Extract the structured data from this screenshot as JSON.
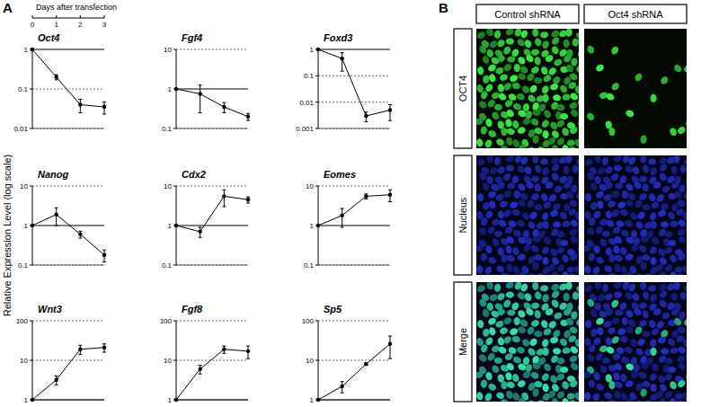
{
  "chart_data": [
    {
      "type": "line",
      "title": "Oct4",
      "x": [
        0,
        1,
        2,
        3
      ],
      "values": [
        1,
        0.2,
        0.04,
        0.035
      ],
      "errors": [
        0,
        0.03,
        0.015,
        0.012
      ],
      "xlim": [
        0,
        3
      ],
      "ylim": [
        0.01,
        1
      ],
      "yticks": [
        0.01,
        0.1,
        1
      ],
      "log": "y",
      "grid": true,
      "tick_labels": "y",
      "color": "#000000",
      "marker": "circle"
    },
    {
      "type": "line",
      "title": "Fgf4",
      "x": [
        0,
        1,
        2,
        3
      ],
      "values": [
        1,
        0.75,
        0.35,
        0.2
      ],
      "errors": [
        0,
        0.5,
        0.1,
        0.04
      ],
      "xlim": [
        0,
        3
      ],
      "ylim": [
        0.1,
        10
      ],
      "yticks": [
        0.1,
        1,
        10
      ],
      "log": "y",
      "grid": true,
      "tick_labels": "y",
      "color": "#000000",
      "marker": "circle"
    },
    {
      "type": "line",
      "title": "Foxd3",
      "x": [
        0,
        1,
        2,
        3
      ],
      "values": [
        1,
        0.45,
        0.003,
        0.005
      ],
      "errors": [
        0,
        0.3,
        0.0012,
        0.003
      ],
      "xlim": [
        0,
        3
      ],
      "ylim": [
        0.001,
        1
      ],
      "yticks": [
        0.001,
        0.01,
        0.1,
        1
      ],
      "log": "y",
      "grid": true,
      "tick_labels": "y",
      "color": "#000000",
      "marker": "circle"
    },
    {
      "type": "line",
      "title": "Nanog",
      "x": [
        0,
        1,
        2,
        3
      ],
      "values": [
        1,
        1.9,
        0.6,
        0.18
      ],
      "errors": [
        0,
        0.9,
        0.12,
        0.06
      ],
      "xlim": [
        0,
        3
      ],
      "ylim": [
        0.1,
        10
      ],
      "yticks": [
        0.1,
        1,
        10
      ],
      "log": "y",
      "grid": true,
      "tick_labels": "y",
      "color": "#000000",
      "marker": "circle"
    },
    {
      "type": "line",
      "title": "Cdx2",
      "x": [
        0,
        1,
        2,
        3
      ],
      "values": [
        1,
        0.7,
        5.5,
        4.5
      ],
      "errors": [
        0,
        0.2,
        2.5,
        0.8
      ],
      "xlim": [
        0,
        3
      ],
      "ylim": [
        0.1,
        10
      ],
      "yticks": [
        0.1,
        1,
        10
      ],
      "log": "y",
      "grid": true,
      "tick_labels": "y",
      "color": "#000000",
      "marker": "circle"
    },
    {
      "type": "line",
      "title": "Eomes",
      "x": [
        0,
        1,
        2,
        3
      ],
      "values": [
        1,
        1.8,
        5.5,
        6
      ],
      "errors": [
        0,
        0.9,
        0.8,
        2
      ],
      "xlim": [
        0,
        3
      ],
      "ylim": [
        0.1,
        10
      ],
      "yticks": [
        0.1,
        1,
        10
      ],
      "log": "y",
      "grid": true,
      "tick_labels": "y",
      "color": "#000000",
      "marker": "circle"
    },
    {
      "type": "line",
      "title": "Wnt3",
      "x": [
        0,
        1,
        2,
        3
      ],
      "values": [
        1,
        3.2,
        19,
        21
      ],
      "errors": [
        0,
        0.8,
        5,
        5
      ],
      "xlim": [
        0,
        3
      ],
      "ylim": [
        1,
        100
      ],
      "yticks": [
        1,
        10,
        100
      ],
      "log": "y",
      "grid": true,
      "tick_labels": "y",
      "color": "#000000",
      "marker": "circle"
    },
    {
      "type": "line",
      "title": "Fgf8",
      "x": [
        0,
        1,
        2,
        3
      ],
      "values": [
        1,
        6,
        19,
        17
      ],
      "errors": [
        0,
        1.5,
        4,
        6
      ],
      "xlim": [
        0,
        3
      ],
      "ylim": [
        1,
        100
      ],
      "yticks": [
        1,
        10,
        100
      ],
      "log": "y",
      "grid": true,
      "tick_labels": "y",
      "color": "#000000",
      "marker": "circle"
    },
    {
      "type": "line",
      "title": "Sp5",
      "x": [
        0,
        1,
        2,
        3
      ],
      "values": [
        1,
        2.2,
        8,
        26
      ],
      "errors": [
        0,
        0.7,
        0.5,
        15
      ],
      "xlim": [
        0,
        3
      ],
      "ylim": [
        1,
        100
      ],
      "yticks": [
        1,
        10,
        100
      ],
      "log": "y",
      "grid": true,
      "tick_labels": "y",
      "color": "#000000",
      "marker": "circle"
    }
  ],
  "figure": {
    "panel_a_label": "A",
    "panel_b_label": "B",
    "days_axis": {
      "label": "Days after transfection",
      "lim": [
        0,
        3
      ],
      "ticks": [
        0,
        1,
        2,
        3
      ]
    },
    "y_axis_label": "Relative Expression Level (log scale)",
    "panel_b": {
      "columns": [
        "Control shRNA",
        "Oct4 shRNA"
      ],
      "rows": [
        "OCT4",
        "Nucleus",
        "Merge"
      ]
    }
  }
}
